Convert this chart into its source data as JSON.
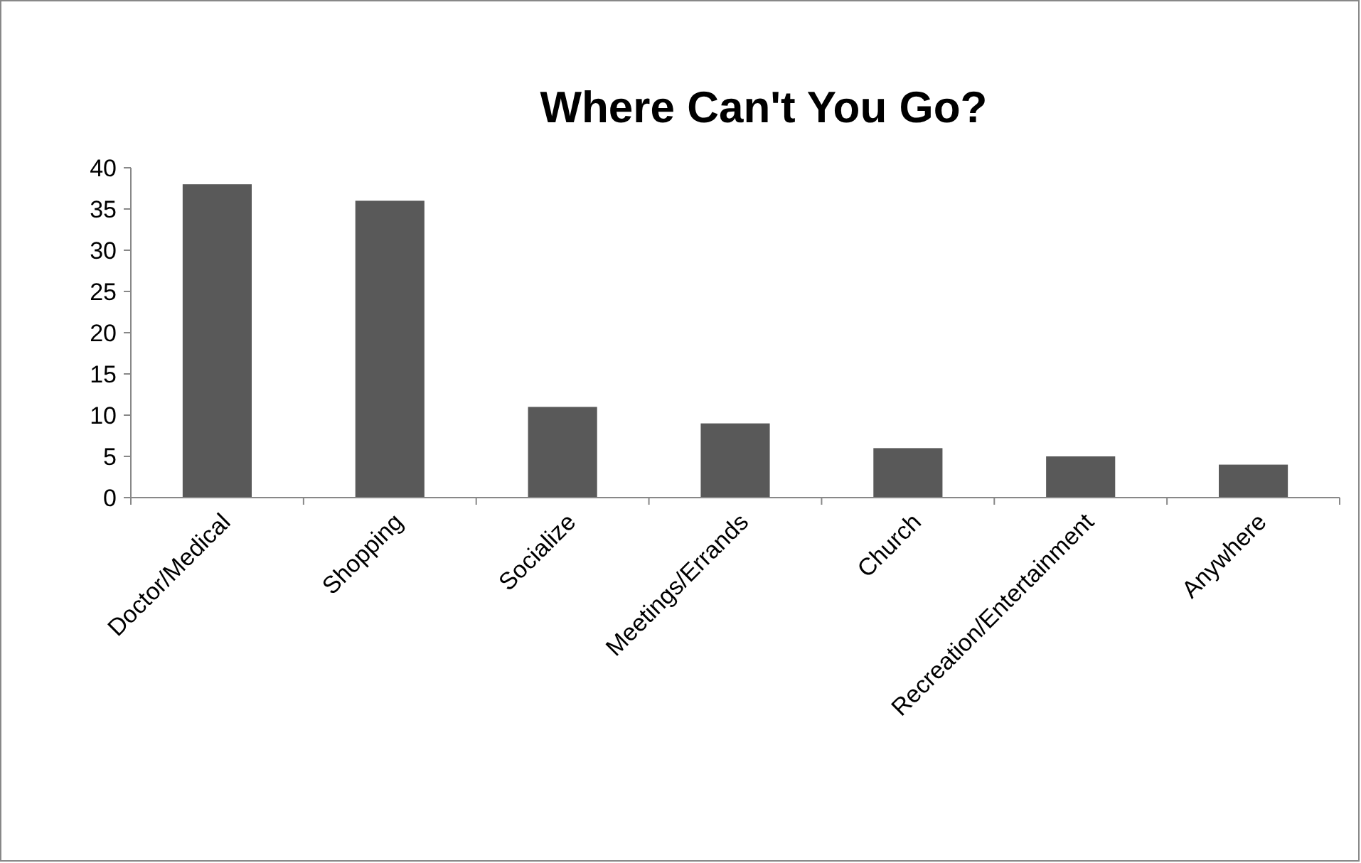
{
  "chart_data": {
    "type": "bar",
    "title": "Where Can't You Go?",
    "categories": [
      "Doctor/Medical",
      "Shopping",
      "Socialize",
      "Meetings/Errands",
      "Church",
      "Recreation/Entertainment",
      "Anywhere"
    ],
    "values": [
      38,
      36,
      11,
      9,
      6,
      5,
      4
    ],
    "color": "#595959",
    "ylim": [
      0,
      40
    ],
    "yticks": [
      0,
      5,
      10,
      15,
      20,
      25,
      30,
      35,
      40
    ],
    "grid": false
  }
}
